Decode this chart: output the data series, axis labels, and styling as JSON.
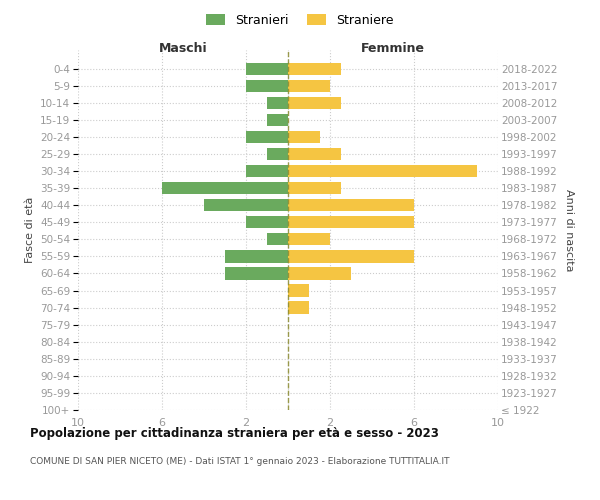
{
  "age_groups": [
    "100+",
    "95-99",
    "90-94",
    "85-89",
    "80-84",
    "75-79",
    "70-74",
    "65-69",
    "60-64",
    "55-59",
    "50-54",
    "45-49",
    "40-44",
    "35-39",
    "30-34",
    "25-29",
    "20-24",
    "15-19",
    "10-14",
    "5-9",
    "0-4"
  ],
  "birth_years": [
    "≤ 1922",
    "1923-1927",
    "1928-1932",
    "1933-1937",
    "1938-1942",
    "1943-1947",
    "1948-1952",
    "1953-1957",
    "1958-1962",
    "1963-1967",
    "1968-1972",
    "1973-1977",
    "1978-1982",
    "1983-1987",
    "1988-1992",
    "1993-1997",
    "1998-2002",
    "2003-2007",
    "2008-2012",
    "2013-2017",
    "2018-2022"
  ],
  "maschi": [
    0,
    0,
    0,
    0,
    0,
    0,
    0,
    0,
    3,
    3,
    1,
    2,
    4,
    6,
    2,
    1,
    2,
    1,
    1,
    2,
    2
  ],
  "femmine": [
    0,
    0,
    0,
    0,
    0,
    0,
    1,
    1,
    3,
    6,
    2,
    6,
    6,
    2.5,
    9,
    2.5,
    1.5,
    0,
    2.5,
    2,
    2.5
  ],
  "color_maschi": "#6aaa5e",
  "color_femmine": "#f5c542",
  "title": "Popolazione per cittadinanza straniera per età e sesso - 2023",
  "subtitle": "COMUNE DI SAN PIER NICETO (ME) - Dati ISTAT 1° gennaio 2023 - Elaborazione TUTTITALIA.IT",
  "header_left": "Maschi",
  "header_right": "Femmine",
  "ylabel_left": "Fasce di età",
  "ylabel_right": "Anni di nascita",
  "legend_maschi": "Stranieri",
  "legend_femmine": "Straniere",
  "xlim": 10,
  "background_color": "#ffffff"
}
